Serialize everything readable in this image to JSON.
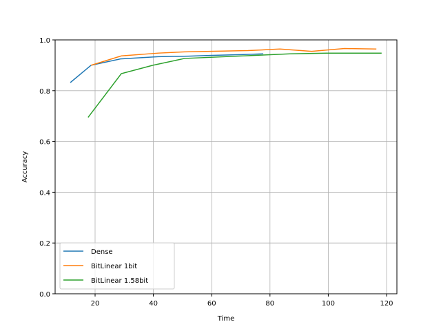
{
  "chart_data": {
    "type": "line",
    "title": "",
    "xlabel": "Time",
    "ylabel": "Accuracy",
    "xlim": [
      6,
      124
    ],
    "ylim": [
      0,
      1.0
    ],
    "grid": true,
    "legend_position": "lower left",
    "xticks": [
      20,
      40,
      60,
      80,
      100,
      120
    ],
    "yticks": [
      0.0,
      0.2,
      0.4,
      0.6,
      0.8,
      1.0
    ],
    "series": [
      {
        "name": "Dense",
        "color": "#1f77b4",
        "x": [
          11.5,
          18.6,
          28.7,
          41.7,
          52,
          60,
          70,
          77.7
        ],
        "y": [
          0.832,
          0.9,
          0.925,
          0.934,
          0.936,
          0.939,
          0.942,
          0.945
        ]
      },
      {
        "name": "BitLinear 1bit",
        "color": "#ff7f0e",
        "x": [
          18.6,
          29,
          41.7,
          50.7,
          72.5,
          83.4,
          94.3,
          105.6,
          116.5
        ],
        "y": [
          0.9,
          0.937,
          0.948,
          0.953,
          0.958,
          0.964,
          0.955,
          0.966,
          0.964
        ]
      },
      {
        "name": "BitLinear 1.58bit",
        "color": "#2ca02c",
        "x": [
          17.6,
          29,
          39.8,
          50.7,
          76.8,
          86.8,
          99.5,
          118.3
        ],
        "y": [
          0.695,
          0.867,
          0.9,
          0.927,
          0.94,
          0.945,
          0.948,
          0.948
        ]
      }
    ]
  }
}
